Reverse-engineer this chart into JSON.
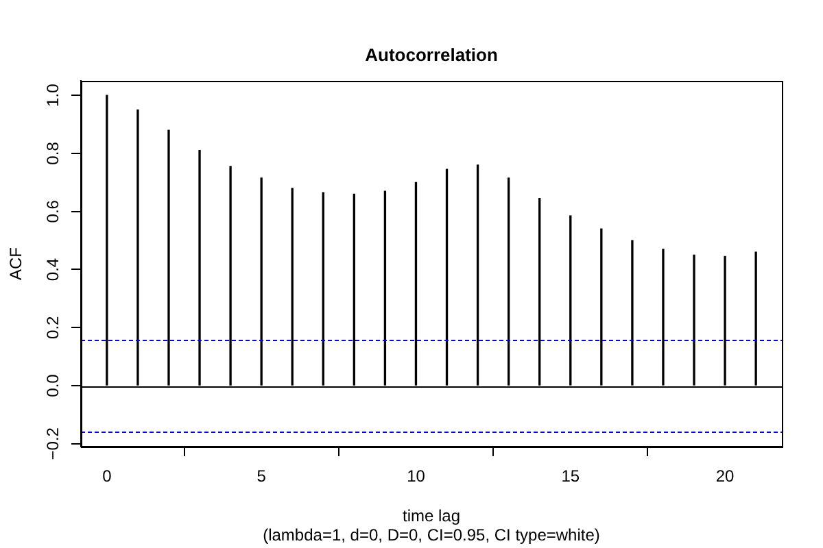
{
  "chart_data": {
    "type": "bar",
    "title": "Autocorrelation",
    "xlabel": "time lag",
    "ylabel": "ACF",
    "annotations": [
      "(lambda=1, d=0, D=0, CI=0.95, CI type=white)"
    ],
    "x": [
      0,
      1,
      2,
      3,
      4,
      5,
      6,
      7,
      8,
      9,
      10,
      11,
      12,
      13,
      14,
      15,
      16,
      17,
      18,
      19,
      20,
      21
    ],
    "values": [
      1.0,
      0.95,
      0.88,
      0.81,
      0.755,
      0.715,
      0.68,
      0.665,
      0.66,
      0.67,
      0.7,
      0.745,
      0.76,
      0.715,
      0.645,
      0.585,
      0.54,
      0.5,
      0.47,
      0.45,
      0.445,
      0.46
    ],
    "color": "#000000",
    "xlim": [
      -0.84,
      21.84
    ],
    "xticks": [
      0,
      5,
      10,
      15,
      20
    ],
    "ylim": [
      -0.21,
      1.05
    ],
    "yticks": [
      {
        "value": -0.2,
        "label": "−0.2"
      },
      {
        "value": 0,
        "label": "0.0"
      },
      0.2,
      0.4,
      0.6,
      0.8,
      {
        "value": 1,
        "label": "1.0"
      }
    ],
    "ref_lines": [
      {
        "axis": "y",
        "value": 0,
        "color": "#000000",
        "line_style": "solid"
      },
      {
        "axis": "y",
        "value": 0.16,
        "color": "#0000ff",
        "line_style": "dashed"
      },
      {
        "axis": "y",
        "value": -0.16,
        "color": "#0000ff",
        "line_style": "dashed"
      }
    ]
  }
}
